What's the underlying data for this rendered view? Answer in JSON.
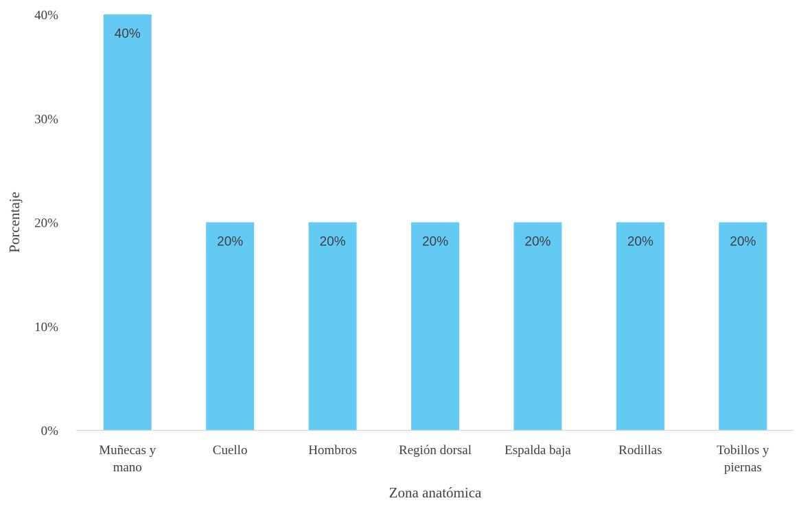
{
  "chart_data": {
    "type": "bar",
    "categories": [
      [
        "Muñecas y",
        "mano"
      ],
      [
        "Cuello"
      ],
      [
        "Hombros"
      ],
      [
        "Región dorsal"
      ],
      [
        "Espalda baja"
      ],
      [
        "Rodillas"
      ],
      [
        "Tobillos y",
        "piernas"
      ]
    ],
    "values": [
      40,
      20,
      20,
      20,
      20,
      20,
      20
    ],
    "data_labels": [
      "40%",
      "20%",
      "20%",
      "20%",
      "20%",
      "20%",
      "20%"
    ],
    "title": "",
    "xlabel": "Zona anatómica",
    "ylabel": "Porcentaje",
    "ylim": [
      0,
      40
    ],
    "y_ticks": [
      0,
      10,
      20,
      30,
      40
    ],
    "y_tick_labels": [
      "0%",
      "10%",
      "20%",
      "30%",
      "40%"
    ],
    "grid": false,
    "legend": "none",
    "bar_color": "#62CAF3",
    "axis_color": "#D9D9D9",
    "text_color": "#404040"
  }
}
